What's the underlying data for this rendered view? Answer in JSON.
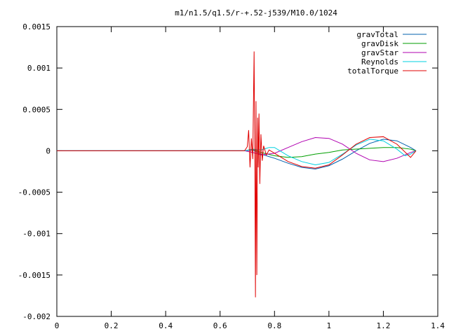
{
  "chart_data": {
    "type": "line",
    "title": "m1/n1.5/q1.5/r-+.52-j539/M10.0/1024",
    "xlabel": "",
    "ylabel": "",
    "xlim": [
      0,
      1.4
    ],
    "ylim": [
      -0.002,
      0.0015
    ],
    "x_ticks": [
      0,
      0.2,
      0.4,
      0.6,
      0.8,
      1.0,
      1.2,
      1.4
    ],
    "x_tick_labels": [
      "0",
      "0.2",
      "0.4",
      "0.6",
      "0.8",
      "1",
      "1.2",
      "1.4"
    ],
    "y_ticks": [
      0.0015,
      0.001,
      0.0005,
      0,
      -0.0005,
      -0.001,
      -0.0015,
      -0.002
    ],
    "y_tick_labels": [
      "0.0015",
      "0.001",
      "0.0005",
      "0",
      "-0.0005",
      "-0.001",
      "-0.0015",
      "-0.002"
    ],
    "grid": false,
    "legend_position": "top-right",
    "series": [
      {
        "name": "gravTotal",
        "color": "#0060ad",
        "x": [
          0,
          0.69,
          0.72,
          0.75,
          0.8,
          0.85,
          0.9,
          0.95,
          1.0,
          1.05,
          1.1,
          1.15,
          1.2,
          1.25,
          1.3,
          1.32
        ],
        "y": [
          0,
          0,
          1e-05,
          -4e-05,
          -9e-05,
          -0.00015,
          -0.0002,
          -0.00022,
          -0.00018,
          -0.0001,
          0.0,
          9e-05,
          0.00014,
          0.00012,
          4e-05,
          0.0
        ]
      },
      {
        "name": "gravDisk",
        "color": "#009e00",
        "x": [
          0,
          0.69,
          0.72,
          0.75,
          0.8,
          0.85,
          0.9,
          0.95,
          1.0,
          1.05,
          1.1,
          1.15,
          1.2,
          1.25,
          1.3,
          1.32
        ],
        "y": [
          0,
          0,
          2e-05,
          -2e-05,
          -6e-05,
          -8e-05,
          -7e-05,
          -4e-05,
          -2e-05,
          1e-05,
          2e-05,
          3e-05,
          4e-05,
          4e-05,
          2e-05,
          0.0
        ]
      },
      {
        "name": "gravStar",
        "color": "#b000b0",
        "x": [
          0,
          0.69,
          0.72,
          0.75,
          0.8,
          0.85,
          0.9,
          0.95,
          1.0,
          1.05,
          1.1,
          1.15,
          1.2,
          1.25,
          1.3,
          1.32
        ],
        "y": [
          0,
          0,
          -2e-05,
          -5e-05,
          -3e-05,
          4e-05,
          0.00011,
          0.00016,
          0.00015,
          8e-05,
          -3e-05,
          -0.00011,
          -0.00013,
          -9e-05,
          -2e-05,
          0.0
        ]
      },
      {
        "name": "Reynolds",
        "color": "#00d0e0",
        "x": [
          0,
          0.69,
          0.72,
          0.75,
          0.78,
          0.8,
          0.85,
          0.9,
          0.95,
          1.0,
          1.05,
          1.1,
          1.15,
          1.2,
          1.25,
          1.28,
          1.3,
          1.32
        ],
        "y": [
          0,
          0,
          2e-05,
          1e-05,
          4e-05,
          4e-05,
          -6e-05,
          -0.00013,
          -0.00017,
          -0.00014,
          -4e-05,
          7e-05,
          0.00014,
          0.00012,
          2e-05,
          -6e-05,
          -4e-05,
          0.0
        ]
      },
      {
        "name": "totalTorque",
        "color": "#e00000",
        "x": [
          0,
          0.69,
          0.7,
          0.705,
          0.71,
          0.715,
          0.72,
          0.725,
          0.728,
          0.73,
          0.732,
          0.735,
          0.738,
          0.74,
          0.743,
          0.746,
          0.75,
          0.755,
          0.76,
          0.77,
          0.78,
          0.8,
          0.85,
          0.9,
          0.95,
          1.0,
          1.05,
          1.1,
          1.15,
          1.2,
          1.25,
          1.3,
          1.32
        ],
        "y": [
          0,
          0,
          5e-05,
          0.00025,
          -0.0002,
          0.00015,
          -0.0001,
          0.0012,
          -0.0004,
          -0.00177,
          0.0006,
          -0.0015,
          0.0004,
          -0.0002,
          0.00045,
          -0.0004,
          0.0002,
          -0.00012,
          6e-05,
          -5e-05,
          1e-05,
          -3e-05,
          -0.00013,
          -0.00019,
          -0.00021,
          -0.00017,
          -5e-05,
          8e-05,
          0.00016,
          0.00017,
          8e-05,
          -8e-05,
          0.0
        ]
      }
    ]
  }
}
